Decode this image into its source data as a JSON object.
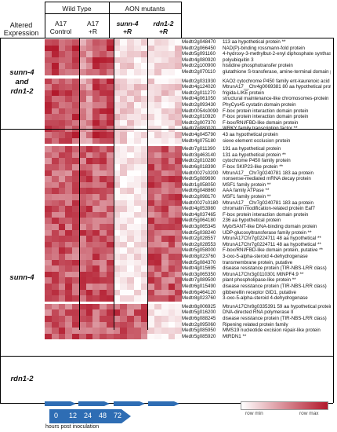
{
  "header": {
    "altered_expression": "Altered\nExpression",
    "wild_type": "Wild Type",
    "aon_mutants": "AON mutants",
    "columns": [
      "A17\nControl",
      "A17\n+R",
      "sunn-4\n+R",
      "rdn1-2\n+R"
    ]
  },
  "groups": [
    {
      "label": "sunn-4\nand\nrdn1-2"
    },
    {
      "label": "sunn-4"
    },
    {
      "label": "rdn1-2"
    }
  ],
  "genes": [
    {
      "id": "Medtr2g048470",
      "desc": "113 aa hypothetical protein **"
    },
    {
      "id": "Medtr2g066450",
      "desc": "NAD(P)-binding rossmann-fold protein"
    },
    {
      "id": "Medtr5g091160",
      "desc": "4-hydroxy-3-methylbut-2-enyl diphosphate synthase **"
    },
    {
      "id": "Medtr4g080920",
      "desc": "polyubiquitin 3"
    },
    {
      "id": "Medtr2g100900",
      "desc": "histidine phosphotransfer protein"
    },
    {
      "id": "Medtr2g070110",
      "desc": "glutathione S-transferase, amine-terminal domain protein"
    },
    {
      "id": "Medtr2g031930",
      "desc": "KAO2 cytochrome P450 family ent-kaurenoic acid oxidase"
    },
    {
      "id": "Medtr4g124020",
      "desc": "MtrunA17__Chr4g0069381 80 aa hypothetical protein"
    },
    {
      "id": "Medtr2g011270",
      "desc": "frigida-LIKE protein"
    },
    {
      "id": "Medtr4g061050",
      "desc": "structural maintenance-like chromosomes-protein"
    },
    {
      "id": "Medtr2g093430",
      "desc": "PhyCys45 cystatin domain protein"
    },
    {
      "id": "Medtr0054s0090",
      "desc": "F-box protein interaction domain protein"
    },
    {
      "id": "Medtr2g010920",
      "desc": "F-box protein interaction domain protein"
    },
    {
      "id": "Medtr2g007370",
      "desc": "F-box/RNI/FBD-like domain protein"
    },
    {
      "id": "Medtr7g080020",
      "desc": "WRKY family transcription factor **"
    },
    {
      "id": "Medtr4g045790",
      "desc": "43 aa hypothetical protein"
    },
    {
      "id": "Medtr4g075180",
      "desc": "sieve element occlusion protein"
    },
    {
      "id": "Medtr7g011390",
      "desc": "191 aa hypothetical protein"
    },
    {
      "id": "Medtr3g463140",
      "desc": "131 aa hypothetical protein **"
    },
    {
      "id": "Medtr2g010280",
      "desc": "cytochrome P450 family protein"
    },
    {
      "id": "Medtr6g018390",
      "desc": "F-box SKIP23-like protein **"
    },
    {
      "id": "Medtr0027s0200",
      "desc": "MtrunA17__Chr7g0240781 183 aa protein"
    },
    {
      "id": "Medtr5g089690",
      "desc": "nonsense-mediated mRNA decay protein"
    },
    {
      "id": "Medtr1g058050",
      "desc": "MSF1 family protein **"
    },
    {
      "id": "Medtr6g048860",
      "desc": "AAA family ATPase **"
    },
    {
      "id": "Medtr2g098170",
      "desc": "MSF1 family protein **"
    },
    {
      "id": "Medtr0027s0180",
      "desc": "MtrunA17__Chr7g0240781 183 aa protein"
    },
    {
      "id": "Medtr4g053980",
      "desc": "chromatin modification-related protein Eaf7"
    },
    {
      "id": "Medtr4g037465",
      "desc": "F-box protein interaction domain protein"
    },
    {
      "id": "Medtr5g064180",
      "desc": "236 aa hypothetical protein"
    },
    {
      "id": "Medtr3g065345",
      "desc": "Myb/SANT-like DNA-binding domain protein"
    },
    {
      "id": "Medtr5g038240",
      "desc": "UDP-glucosyltransferase family protein **"
    },
    {
      "id": "Medtr2g028557",
      "desc": "MtrunA17Chr7g0224711 48 aa hypothetical **"
    },
    {
      "id": "Medtr2g028553",
      "desc": "MtrunA17Chr7g0224711 48 aa hypothetical **"
    },
    {
      "id": "Medtr5g058000",
      "desc": "F-box/RNI/FBD-like domain protein, putative **"
    },
    {
      "id": "Medtr8g023760",
      "desc": "3-oxo-5-alpha-steroid 4-dehydrogenase"
    },
    {
      "id": "Medtr5g084370",
      "desc": "transmembrane protein, putative"
    },
    {
      "id": "Medtr4g015695",
      "desc": "disease resistance protein (TIR-NBS-LRR class)"
    },
    {
      "id": "Medtr3g065350",
      "desc": "MtrunA17Chr3g0110301 MtNPF4.9 **"
    },
    {
      "id": "Medtr7g089500",
      "desc": "plant phospholipase-like protein **"
    },
    {
      "id": "Medtr6g015490",
      "desc": "disease resistance protein (TIR-NBS-LRR class)"
    },
    {
      "id": "Medtr6g464120",
      "desc": "gibberellin receptor GID1, putative"
    },
    {
      "id": "Medtr8g023760",
      "desc": "3-oxo-5-alpha-steroid 4-dehydrogenase"
    },
    {
      "id": "Medtr8g006925",
      "desc": "MtrunA17Chr8g0335391 59 aa hypothetical protein **"
    },
    {
      "id": "Medtr5g016200",
      "desc": "DNA-directed RNA polymerase II"
    },
    {
      "id": "Medtr6g088245",
      "desc": "disease resistance protein (TIR-NBS-LRR class)"
    },
    {
      "id": "Medtr2g095060",
      "desc": "Ripening related protein family"
    },
    {
      "id": "Medtr5g085950",
      "desc": "MMS19 nucleotide excision repair-like protein"
    },
    {
      "id": "Medtr5g085920",
      "desc": "MtRDN1 **"
    }
  ],
  "legend": {
    "min_label": "row min",
    "max_label": "row max",
    "colors": [
      "#ffffff",
      "#b2182b"
    ]
  },
  "timeline": {
    "ticks": [
      "0",
      "12",
      "24",
      "48",
      "72"
    ],
    "caption": "hours post inoculation",
    "color": "#2e6db4"
  }
}
